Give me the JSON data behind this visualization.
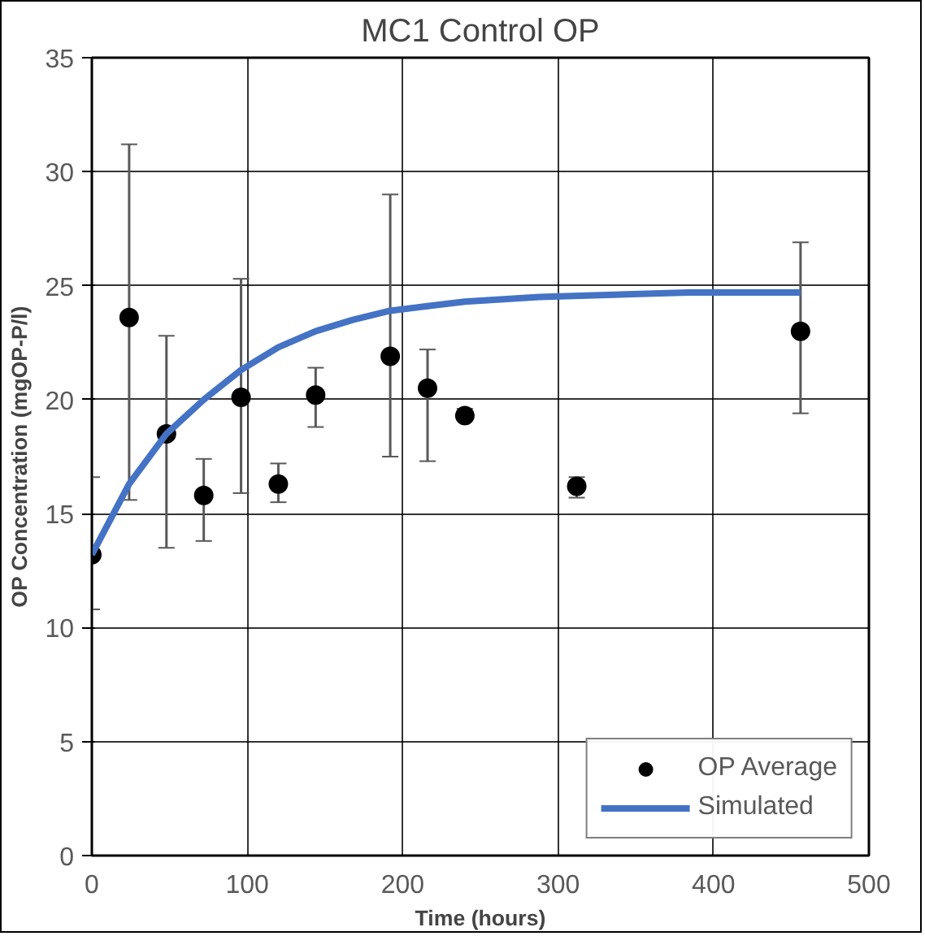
{
  "chart_data": {
    "type": "scatter",
    "title": "MC1 Control OP",
    "xlabel": "Time (hours)",
    "ylabel": "OP Concentration (mgOP-P/l)",
    "xlim": [
      0,
      500
    ],
    "xticks": [
      0,
      100,
      200,
      300,
      400,
      500
    ],
    "ylim": [
      0,
      35
    ],
    "yticks": [
      0,
      5,
      10,
      15,
      20,
      25,
      30,
      35
    ],
    "grid": true,
    "legend": "bottom right",
    "marker": "circle",
    "series": [
      {
        "name": "OP Average",
        "color": "#000000",
        "x": [
          0,
          24,
          48,
          72,
          96,
          120,
          144,
          192,
          216,
          240,
          312,
          456
        ],
        "values": [
          13.2,
          23.6,
          18.5,
          15.8,
          20.1,
          16.3,
          20.2,
          21.9,
          20.5,
          19.3,
          16.2,
          23.0
        ],
        "errors": [
          [
            10.8,
            16.6
          ],
          [
            15.6,
            31.2
          ],
          [
            13.5,
            22.8
          ],
          [
            13.8,
            17.4
          ],
          [
            15.9,
            25.3
          ],
          [
            15.5,
            17.2
          ],
          [
            18.8,
            21.4
          ],
          [
            17.5,
            29.0
          ],
          [
            17.3,
            22.2
          ],
          [
            19.1,
            19.6
          ],
          [
            15.7,
            16.6
          ],
          [
            19.4,
            26.9
          ]
        ]
      },
      {
        "name": "Simulated",
        "type": "line",
        "color": "#4472c4",
        "marker": "none",
        "x": [
          0,
          24,
          48,
          72,
          96,
          120,
          144,
          168,
          192,
          216,
          240,
          288,
          336,
          384,
          456
        ],
        "values": [
          13.2,
          16.3,
          18.5,
          20.0,
          21.3,
          22.3,
          23.0,
          23.5,
          23.9,
          24.1,
          24.3,
          24.5,
          24.6,
          24.7,
          24.7
        ]
      }
    ]
  }
}
